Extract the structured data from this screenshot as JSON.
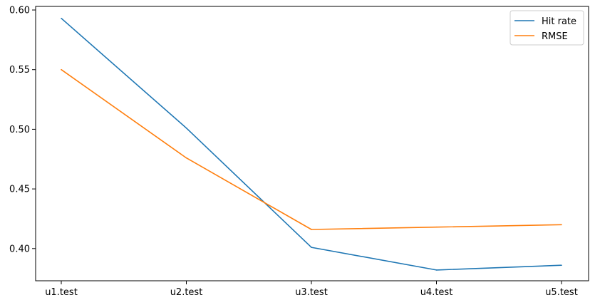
{
  "chart_data": {
    "type": "line",
    "categories": [
      "u1.test",
      "u2.test",
      "u3.test",
      "u4.test",
      "u5.test"
    ],
    "series": [
      {
        "name": "Hit rate",
        "color": "#1f77b4",
        "values": [
          0.593,
          0.501,
          0.401,
          0.382,
          0.386
        ]
      },
      {
        "name": "RMSE",
        "color": "#ff7f0e",
        "values": [
          0.55,
          0.476,
          0.416,
          0.418,
          0.42
        ]
      }
    ],
    "ylim": [
      0.373,
      0.603
    ],
    "yticks": [
      "0.40",
      "0.45",
      "0.50",
      "0.55",
      "0.60"
    ],
    "grid": false,
    "legend_position": "top-right"
  }
}
